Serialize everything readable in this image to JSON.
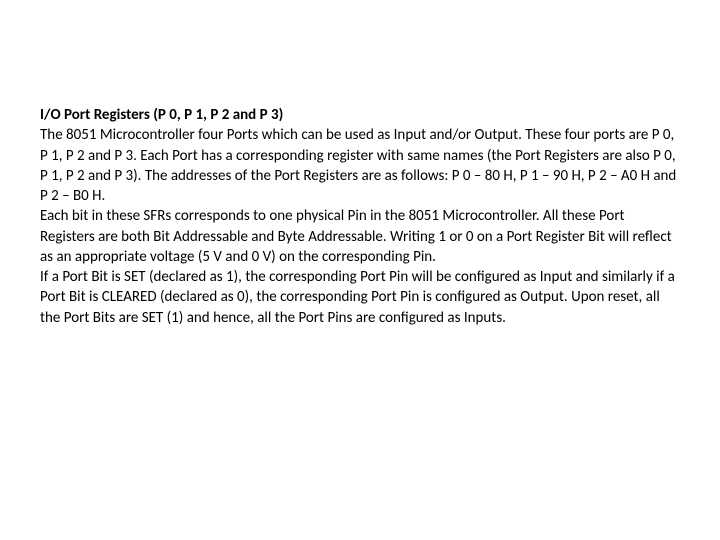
{
  "document": {
    "heading": "I/O Port Registers (P 0, P 1, P 2 and P 3)",
    "p1": "The 8051 Microcontroller four Ports which can be used as Input and/or Output. These four ports are P 0, P 1, P 2 and P 3. Each Port has a corresponding register with same names (the Port Registers are also P 0, P 1, P 2 and P 3). The addresses of the Port Registers are as follows: P 0 – 80 H, P 1 – 90 H, P 2 – A0 H and P 2 – B0 H.",
    "p2": "Each bit in these SFRs corresponds to one physical Pin in the 8051 Microcontroller. All these Port Registers are both Bit Addressable and Byte Addressable. Writing 1 or 0 on a Port Register Bit will reflect as an appropriate voltage (5 V and 0 V) on the corresponding Pin.",
    "p3": "If a Port Bit is SET (declared as 1), the corresponding Port Pin will be configured as Input and similarly if a Port Bit is CLEARED (declared as 0), the corresponding Port Pin is configured as Output. Upon reset, all the Port Bits are SET (1) and hence, all the Port Pins are configured as Inputs.",
    "styles": {
      "heading_fontsize": 15,
      "heading_weight": 700,
      "body_fontsize": 15,
      "body_weight": 400,
      "text_color": "#000000",
      "background_color": "#ffffff",
      "line_height": 1.35,
      "font_family": "Calibri"
    }
  }
}
